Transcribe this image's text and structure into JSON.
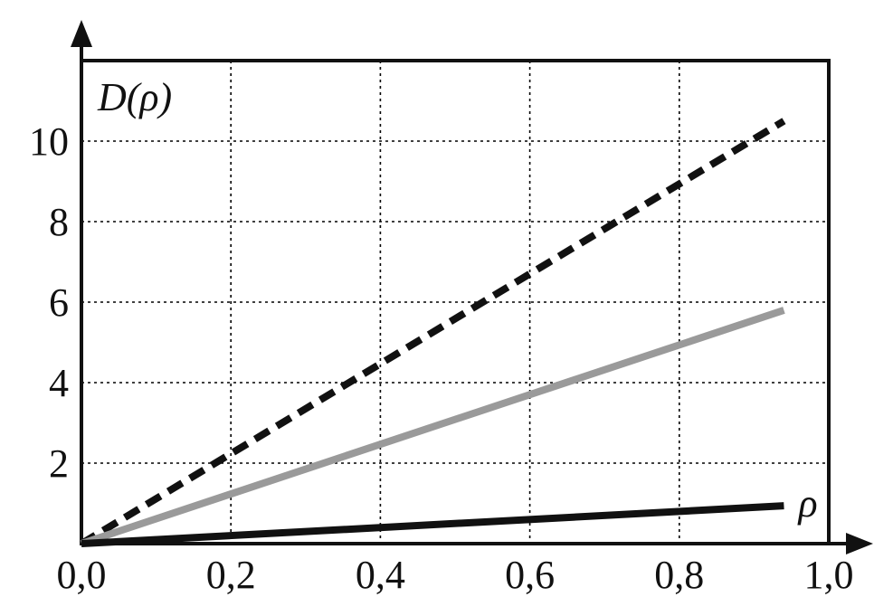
{
  "chart_data": {
    "type": "line",
    "ylabel": "D(ρ)",
    "xlabel": "",
    "xlim": [
      0,
      1.0
    ],
    "ylim": [
      0,
      12
    ],
    "grid": true,
    "x_ticks": [
      0.0,
      0.2,
      0.4,
      0.6,
      0.8,
      1.0
    ],
    "x_tick_labels": [
      "0,0",
      "0,2",
      "0,4",
      "0,6",
      "0,8",
      "1,0"
    ],
    "y_ticks": [
      2,
      4,
      6,
      8,
      10
    ],
    "y_tick_labels": [
      "2",
      "4",
      "6",
      "8",
      "10"
    ],
    "series": [
      {
        "style": "dashed",
        "color": "#111111",
        "x": [
          0,
          0.94
        ],
        "y": [
          0,
          10.5
        ]
      },
      {
        "style": "solid",
        "color": "#9a9a9a",
        "x": [
          0,
          0.94
        ],
        "y": [
          0,
          5.8
        ]
      },
      {
        "name": "ρ",
        "style": "solid",
        "color": "#111111",
        "x": [
          0,
          0.94
        ],
        "y": [
          0,
          0.94
        ]
      }
    ]
  }
}
